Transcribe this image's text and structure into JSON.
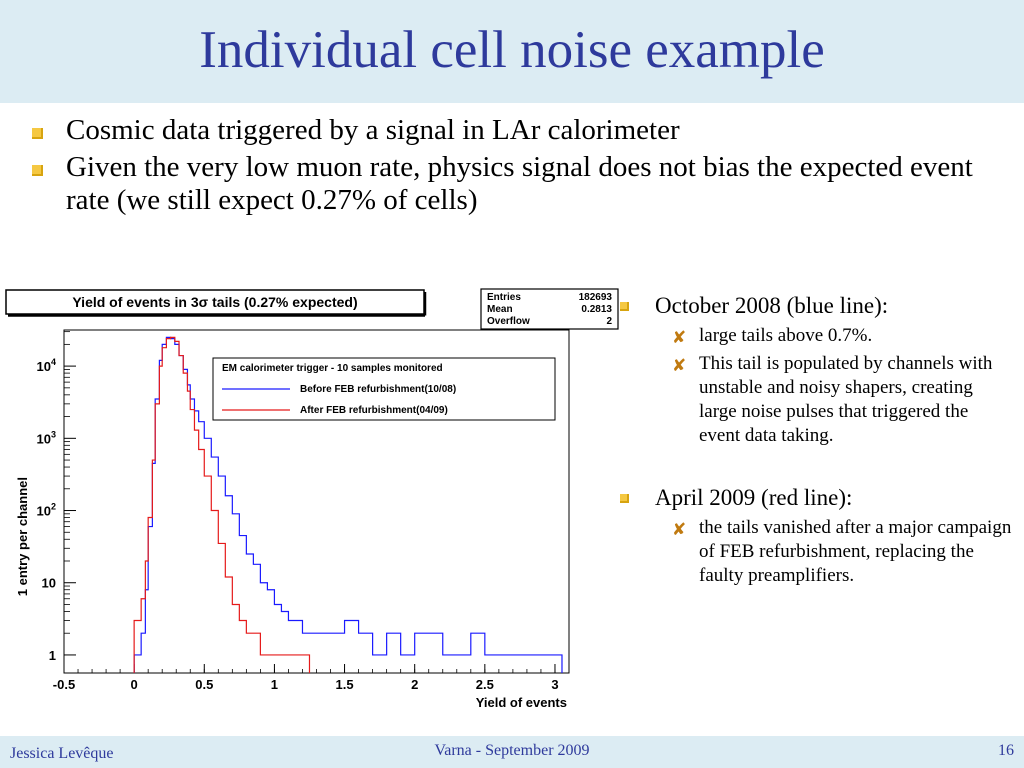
{
  "slide": {
    "title": "Individual cell noise example",
    "bullets": [
      "Cosmic data triggered by a signal in LAr calorimeter",
      "Given the very low muon rate, physics signal does not bias the expected event rate (we still expect 0.27% of cells)"
    ],
    "side_notes": [
      {
        "heading": "October 2008 (blue line):",
        "subs": [
          "large tails above 0.7%.",
          "This tail is populated by channels with unstable and noisy shapers, creating large noise pulses that triggered the event data taking."
        ]
      },
      {
        "heading": "April 2009 (red line):",
        "subs": [
          "the tails vanished after a major campaign of FEB refurbishment, replacing the faulty preamplifiers."
        ]
      }
    ],
    "footer": {
      "author": "Jessica Levêque",
      "venue": "Varna -  September 2009",
      "page": "16"
    }
  },
  "chart_data": {
    "type": "line",
    "title": "Yield of events in 3σ tails (0.27% expected)",
    "xlabel": "Yield of events",
    "ylabel": "1 entry per channel",
    "xlim": [
      -0.5,
      3.1
    ],
    "ylim_log10": [
      -0.25,
      4.5
    ],
    "log_y": true,
    "xticks": [
      "-0.5",
      "0",
      "0.5",
      "1",
      "1.5",
      "2",
      "2.5",
      "3"
    ],
    "yticks": [
      "1",
      "10",
      "10",
      "10",
      "10"
    ],
    "ytick_exponents": [
      "",
      "",
      "2",
      "3",
      "4"
    ],
    "stats": {
      "Entries": "182693",
      "Mean": "0.2813",
      "Overflow": "2"
    },
    "legend": {
      "header": "EM calorimeter trigger - 10 samples monitored",
      "placement": "top-right"
    },
    "series": [
      {
        "name": "Before FEB refurbishment(10/08)",
        "color": "#1a1aff",
        "x": [
          0.0,
          0.05,
          0.08,
          0.1,
          0.13,
          0.15,
          0.18,
          0.2,
          0.23,
          0.26,
          0.29,
          0.32,
          0.35,
          0.38,
          0.4,
          0.43,
          0.46,
          0.5,
          0.55,
          0.6,
          0.65,
          0.7,
          0.75,
          0.8,
          0.85,
          0.9,
          0.95,
          1.0,
          1.05,
          1.1,
          1.15,
          1.2,
          1.3,
          1.4,
          1.5,
          1.6,
          1.7,
          1.8,
          1.9,
          2.0,
          2.1,
          2.2,
          2.3,
          2.4,
          2.5,
          2.6,
          2.7,
          2.8,
          2.9,
          3.0
        ],
        "y": [
          1,
          2,
          8,
          60,
          450,
          3500,
          12000,
          20000,
          25000,
          24000,
          20000,
          14000,
          9000,
          5500,
          3500,
          2400,
          1700,
          1000,
          550,
          300,
          160,
          90,
          45,
          25,
          18,
          10,
          8,
          5,
          4,
          3,
          3,
          2,
          2,
          2,
          3,
          2,
          1,
          2,
          1,
          2,
          2,
          1,
          1,
          2,
          1,
          1,
          1,
          1,
          1,
          1
        ]
      },
      {
        "name": "After  FEB refurbishment(04/09)",
        "color": "#e51a1a",
        "x": [
          0.0,
          0.05,
          0.08,
          0.1,
          0.13,
          0.15,
          0.18,
          0.2,
          0.23,
          0.26,
          0.29,
          0.32,
          0.35,
          0.38,
          0.4,
          0.43,
          0.46,
          0.5,
          0.55,
          0.6,
          0.65,
          0.7,
          0.75,
          0.8,
          0.85,
          0.9,
          0.95,
          1.0,
          1.05,
          1.1,
          1.15,
          1.2
        ],
        "y": [
          3,
          6,
          20,
          80,
          500,
          3000,
          10000,
          18000,
          24000,
          25000,
          22000,
          14000,
          8000,
          4500,
          2500,
          1300,
          700,
          300,
          100,
          35,
          12,
          5,
          3,
          2,
          2,
          1,
          1,
          1,
          1,
          1,
          1,
          1
        ]
      }
    ]
  }
}
